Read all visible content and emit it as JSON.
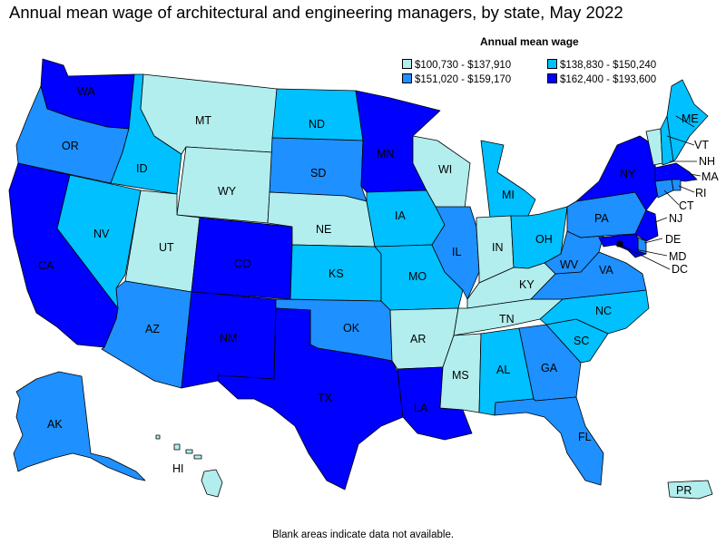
{
  "title": "Annual mean wage of architectural and engineering managers, by state, May 2022",
  "legend": {
    "title": "Annual mean wage",
    "bins": [
      {
        "label": "$100,730 - $137,910",
        "color": "#b2eeee"
      },
      {
        "label": "$138,830 - $150,240",
        "color": "#00c0ff"
      },
      {
        "label": "$151,020 - $159,170",
        "color": "#1e90ff"
      },
      {
        "label": "$162,400 - $193,600",
        "color": "#0000ff"
      }
    ]
  },
  "footnote": "Blank areas indicate data not available.",
  "states": {
    "WA": {
      "bin": 3
    },
    "OR": {
      "bin": 2
    },
    "CA": {
      "bin": 3
    },
    "ID": {
      "bin": 1
    },
    "NV": {
      "bin": 1
    },
    "MT": {
      "bin": 0
    },
    "WY": {
      "bin": 0
    },
    "UT": {
      "bin": 0
    },
    "AZ": {
      "bin": 2
    },
    "CO": {
      "bin": 3
    },
    "NM": {
      "bin": 3
    },
    "ND": {
      "bin": 1
    },
    "SD": {
      "bin": 2
    },
    "NE": {
      "bin": 0
    },
    "KS": {
      "bin": 1
    },
    "OK": {
      "bin": 2
    },
    "TX": {
      "bin": 3
    },
    "MN": {
      "bin": 3
    },
    "IA": {
      "bin": 1
    },
    "MO": {
      "bin": 1
    },
    "AR": {
      "bin": 0
    },
    "LA": {
      "bin": 3
    },
    "WI": {
      "bin": 0
    },
    "IL": {
      "bin": 2
    },
    "MI": {
      "bin": 1
    },
    "IN": {
      "bin": 0
    },
    "OH": {
      "bin": 1
    },
    "KY": {
      "bin": 0
    },
    "TN": {
      "bin": 0
    },
    "MS": {
      "bin": 0
    },
    "AL": {
      "bin": 1
    },
    "GA": {
      "bin": 2
    },
    "FL": {
      "bin": 2
    },
    "SC": {
      "bin": 1
    },
    "NC": {
      "bin": 1
    },
    "VA": {
      "bin": 2
    },
    "WV": {
      "bin": 2
    },
    "PA": {
      "bin": 2
    },
    "NY": {
      "bin": 3
    },
    "VT": {
      "bin": 0
    },
    "NH": {
      "bin": 1
    },
    "ME": {
      "bin": 1
    },
    "MA": {
      "bin": 3
    },
    "RI": {
      "bin": 2
    },
    "CT": {
      "bin": 2
    },
    "NJ": {
      "bin": 3
    },
    "DE": {
      "bin": 2
    },
    "MD": {
      "bin": 3
    },
    "DC": {
      "bin": 3
    },
    "AK": {
      "bin": 2
    },
    "HI": {
      "bin": 0
    },
    "PR": {
      "bin": 0
    }
  }
}
